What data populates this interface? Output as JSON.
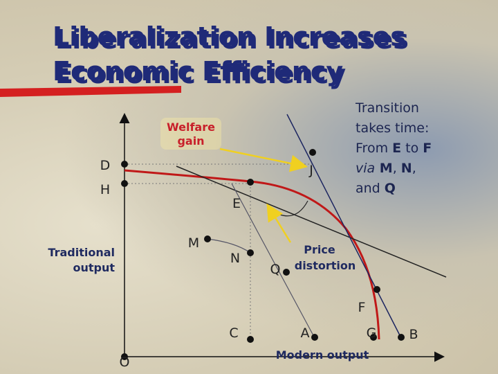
{
  "title": {
    "lines": [
      "Liberalization Increases",
      "Economic Efficiency"
    ]
  },
  "welfare_gain": [
    "Welfare",
    "gain"
  ],
  "transition": [
    [
      "Transition"
    ],
    [
      "takes time:"
    ],
    [
      "From ",
      "E",
      " to ",
      "F"
    ],
    [
      "via",
      " M",
      ", ",
      "N",
      ","
    ],
    [
      "and ",
      "Q"
    ]
  ],
  "price_distortion": [
    "Price",
    "distortion"
  ],
  "y_axis_label": [
    "Traditional",
    "output"
  ],
  "x_axis_label": "Modern output",
  "points": [
    "D",
    "H",
    "E",
    "J",
    "M",
    "N",
    "Q",
    "F",
    "C",
    "A",
    "G",
    "B",
    "O"
  ]
}
